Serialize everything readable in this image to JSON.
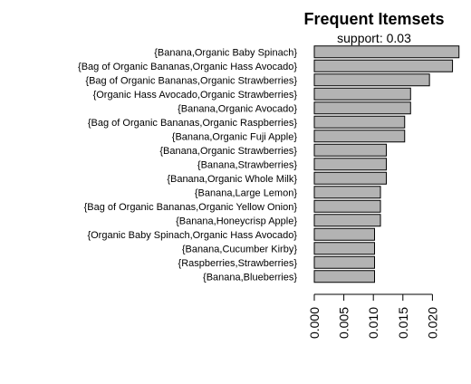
{
  "chart_data": {
    "type": "bar",
    "orientation": "horizontal",
    "title": "Frequent Itemsets",
    "subtitle": "support: 0.03",
    "xlabel": "",
    "ylabel": "",
    "xlim": [
      0,
      0.025
    ],
    "xticks": [
      "0.000",
      "0.005",
      "0.010",
      "0.015",
      "0.020"
    ],
    "bar_color": "#b3b3b3",
    "categories": [
      "{Banana,Organic Baby Spinach}",
      "{Bag of Organic Bananas,Organic Hass Avocado}",
      "{Bag of Organic Bananas,Organic Strawberries}",
      "{Organic Hass Avocado,Organic Strawberries}",
      "{Banana,Organic Avocado}",
      "{Bag of Organic Bananas,Organic Raspberries}",
      "{Banana,Organic Fuji Apple}",
      "{Banana,Organic Strawberries}",
      "{Banana,Strawberries}",
      "{Banana,Organic Whole Milk}",
      "{Banana,Large Lemon}",
      "{Bag of Organic Bananas,Organic Yellow Onion}",
      "{Banana,Honeycrisp Apple}",
      "{Organic Baby Spinach,Organic Hass Avocado}",
      "{Banana,Cucumber Kirby}",
      "{Raspberries,Strawberries}",
      "{Banana,Blueberries}"
    ],
    "values": [
      0.0245,
      0.0234,
      0.0195,
      0.0163,
      0.0163,
      0.0153,
      0.0153,
      0.0122,
      0.0122,
      0.0122,
      0.0112,
      0.0112,
      0.0112,
      0.0102,
      0.0102,
      0.0102,
      0.0102
    ]
  }
}
